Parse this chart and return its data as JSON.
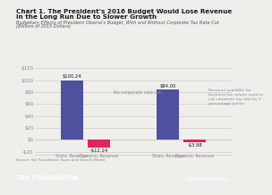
{
  "title_line1": "Chart 1. The President's 2016 Budget Would Lose Revenue",
  "title_line2": "in the Long Run Due to Slower Growth",
  "subtitle_line1": "Budgetary Effects of President Obama's Budget, With and Without Corporate Tax Rate Cut",
  "subtitle_line2": "(Billions of 2015 Dollars)",
  "groups": [
    {
      "bars": [
        {
          "label": "Static Revenue",
          "value": 100.24,
          "color": "#4f519e"
        },
        {
          "label": "Dynamic Revenue",
          "value": -12.24,
          "color": "#e0245e"
        }
      ],
      "annotation": "No corporate rate cut.",
      "bar_labels": [
        "$100.24",
        "-$12.24"
      ]
    },
    {
      "bars": [
        {
          "label": "Static Revenue",
          "value": 84.0,
          "color": "#4f519e"
        },
        {
          "label": "Dynamic Revenue",
          "value": -3.98,
          "color": "#e0245e"
        }
      ],
      "annotation": "Revenue available for\nbusiness tax reform used to\ncut corporate tax rate by 2\npercentage points.",
      "bar_labels": [
        "$84.00",
        "-$3.98"
      ]
    }
  ],
  "ylim": [
    -25,
    130
  ],
  "yticks": [
    -20,
    0,
    20,
    40,
    60,
    80,
    100,
    120
  ],
  "ytick_labels": [
    "-$20",
    "$0",
    "$20",
    "$40",
    "$60",
    "$80",
    "$100",
    "$120"
  ],
  "source_text": "Source: Tax Foundation Taxes and Growth Model.",
  "footer_left": "TAX FOUNDATION",
  "footer_right": "@TaxFoundation",
  "bg_color": "#f0eeeb",
  "footer_color": "#1c4f7a",
  "grid_color": "#d0cec9",
  "axis_label_color": "#888888",
  "title_color": "#1a1a1a",
  "subtitle_color": "#555555",
  "annotation_color": "#888888"
}
